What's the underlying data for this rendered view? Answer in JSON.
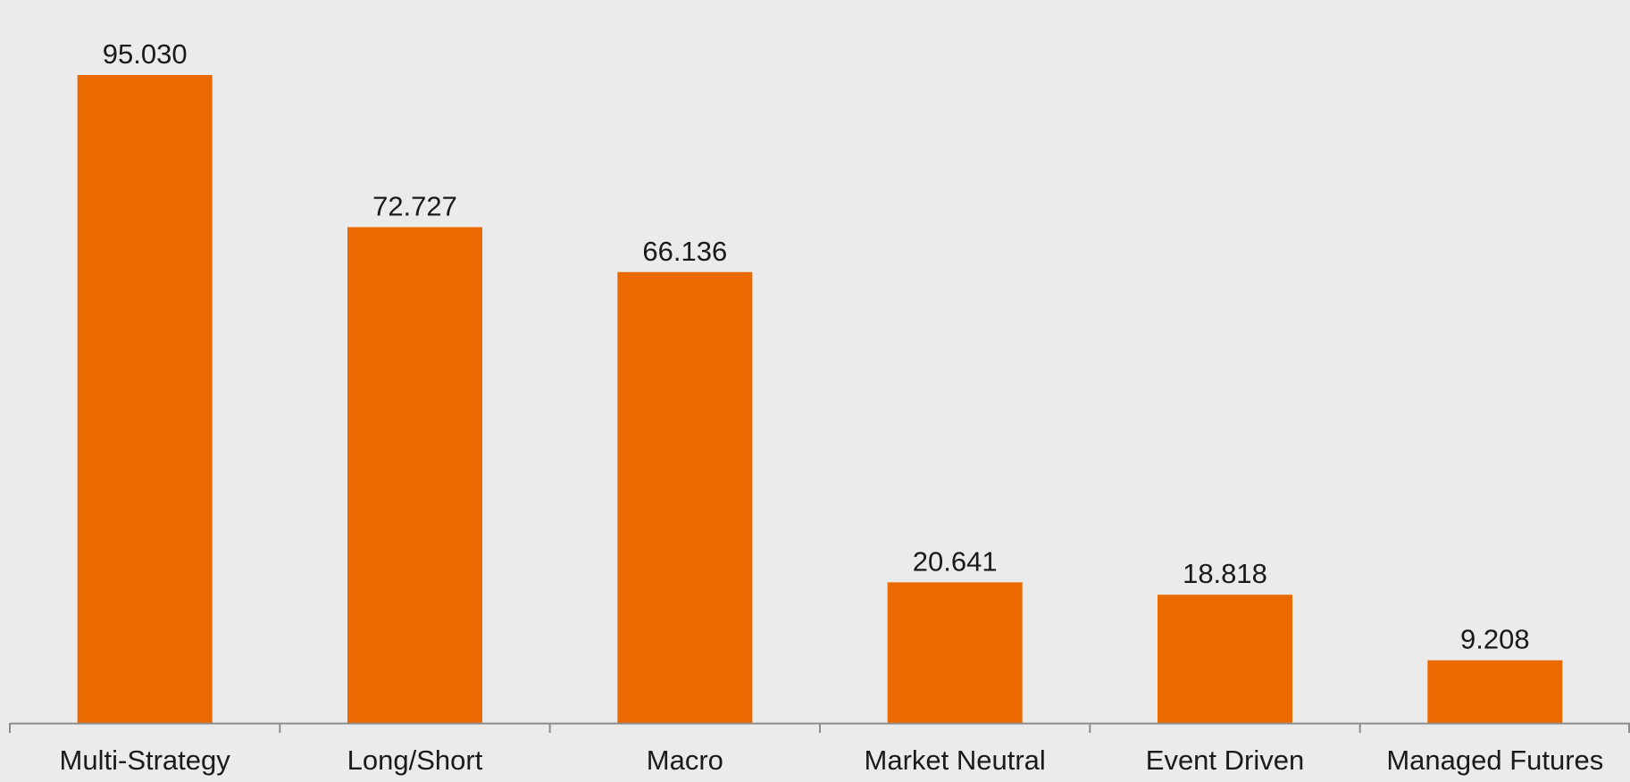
{
  "chart_data": {
    "type": "bar",
    "categories": [
      "Multi-Strategy",
      "Long/Short",
      "Macro",
      "Market Neutral",
      "Event Driven",
      "Managed Futures"
    ],
    "values": [
      95.03,
      72.727,
      66.136,
      20.641,
      18.818,
      9.208
    ],
    "value_labels": [
      "95.030",
      "72.727",
      "66.136",
      "20.641",
      "18.818",
      "9.208"
    ],
    "title": "",
    "xlabel": "",
    "ylabel": "",
    "ylim": [
      0,
      100
    ],
    "grid": false,
    "legend": "none",
    "colors": {
      "bar": "#eb6a00",
      "axis": "#8c8c8c",
      "background": "#ebebeb",
      "text": "#1a1a1a"
    }
  }
}
